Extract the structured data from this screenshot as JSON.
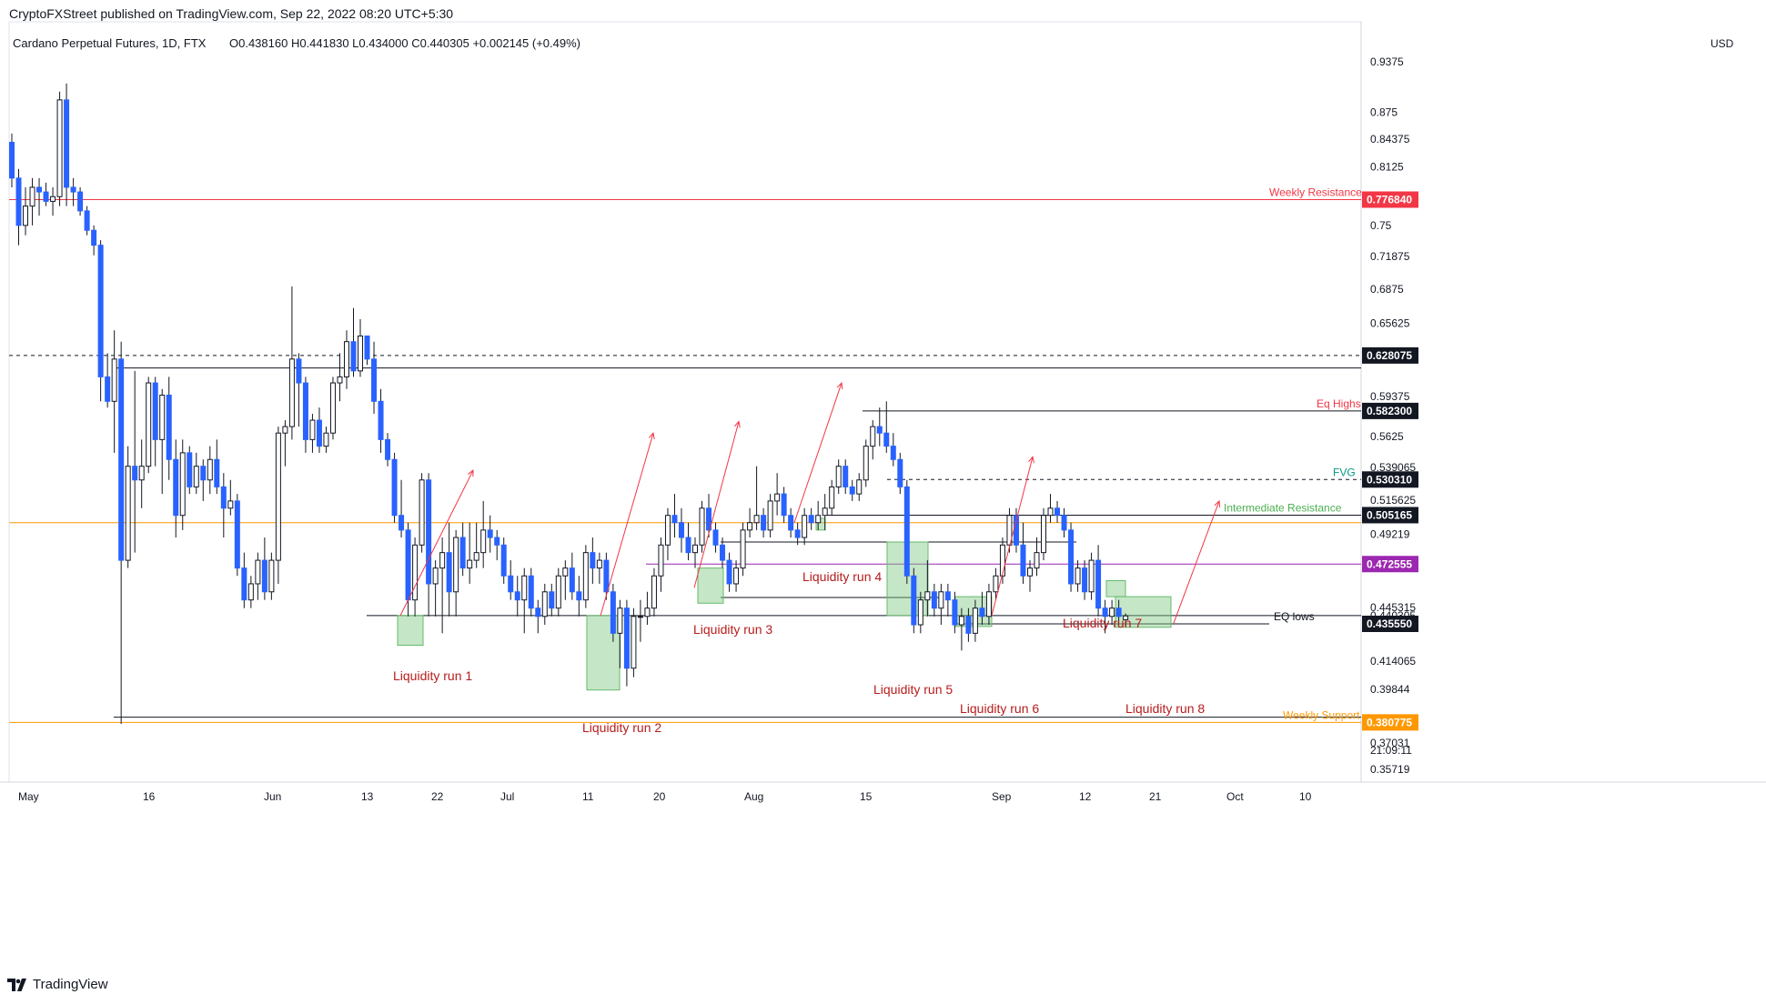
{
  "header": {
    "published": "CryptoFXStreet published on TradingView.com, Sep 22, 2022 08:20 UTC+5:30"
  },
  "footer": {
    "brand": "TradingView",
    "logo_icon": "tradingview-logo-icon"
  },
  "colors": {
    "up": "#ffffff",
    "down": "#2962ff",
    "wick": "#131722",
    "resistance": "#f23645",
    "support": "#ff9800",
    "fvg": "#089981",
    "intermediate": "#4caf50",
    "purple": "#9c27b0",
    "box": "#81c784",
    "arrow": "#f23645",
    "run_label": "#b71c1c"
  },
  "chart_data": {
    "type": "candlestick",
    "title": "Cardano Perpetual Futures, 1D, FTX",
    "ohlc_header": "O0.438160  H0.441830  L0.434000  C0.440305  +0.002145 (+0.49%)",
    "currency": "USD",
    "y_scale": "log",
    "ylim": [
      0.351,
      0.99
    ],
    "x_tick_labels": [
      "May",
      "16",
      "Jun",
      "13",
      "22",
      "Jul",
      "11",
      "20",
      "Aug",
      "15",
      "Sep",
      "12",
      "21",
      "Oct",
      "10"
    ],
    "y_tick_labels": [
      0.9375,
      0.875,
      0.84375,
      0.8125,
      0.75,
      0.71875,
      0.6875,
      0.65625,
      0.59375,
      0.5625,
      0.539065,
      0.515625,
      0.49219,
      0.445315,
      0.440305,
      0.414065,
      0.39844,
      0.37031,
      0.35719
    ],
    "countdown": "21:09:11",
    "price_tags": [
      {
        "value": "0.776840",
        "color": "#f23645"
      },
      {
        "value": "0.628075",
        "color": "#131722"
      },
      {
        "value": "0.582300",
        "color": "#131722"
      },
      {
        "value": "0.530310",
        "color": "#131722"
      },
      {
        "value": "0.505165",
        "color": "#131722"
      },
      {
        "value": "0.472555",
        "color": "#9c27b0"
      },
      {
        "value": "0.435550",
        "color": "#131722"
      },
      {
        "value": "0.380775",
        "color": "#ff9800"
      }
    ],
    "levels": [
      {
        "label": "Weekly Resistance",
        "value": 0.77684,
        "color": "#f23645"
      },
      {
        "label": "Eq Highs",
        "value": 0.5823,
        "color": "#f23645"
      },
      {
        "label": "FVG",
        "value": 0.53031,
        "color": "#089981"
      },
      {
        "label": "Intermediate Resistance",
        "value": 0.505165,
        "color": "#4caf50"
      },
      {
        "label": "EQ lows",
        "value": 0.43555,
        "color": "#131722"
      },
      {
        "label": "Weekly Support",
        "value": 0.380775,
        "color": "#ff9800"
      }
    ],
    "liquidity_runs": [
      "Liquidity run 1",
      "Liquidity run 2",
      "Liquidity run 3",
      "Liquidity run 4",
      "Liquidity run 5",
      "Liquidity run 6",
      "Liquidity run 7",
      "Liquidity run 8"
    ],
    "candles": [
      [
        0.84,
        0.85,
        0.79,
        0.8
      ],
      [
        0.8,
        0.81,
        0.73,
        0.75
      ],
      [
        0.75,
        0.79,
        0.74,
        0.77
      ],
      [
        0.77,
        0.8,
        0.75,
        0.79
      ],
      [
        0.79,
        0.8,
        0.76,
        0.785
      ],
      [
        0.785,
        0.795,
        0.77,
        0.775
      ],
      [
        0.775,
        0.79,
        0.76,
        0.78
      ],
      [
        0.78,
        0.9,
        0.77,
        0.89
      ],
      [
        0.89,
        0.91,
        0.77,
        0.79
      ],
      [
        0.79,
        0.8,
        0.77,
        0.785
      ],
      [
        0.785,
        0.79,
        0.76,
        0.765
      ],
      [
        0.765,
        0.77,
        0.74,
        0.745
      ],
      [
        0.745,
        0.75,
        0.72,
        0.73
      ],
      [
        0.73,
        0.735,
        0.59,
        0.61
      ],
      [
        0.61,
        0.63,
        0.585,
        0.59
      ],
      [
        0.59,
        0.65,
        0.55,
        0.625
      ],
      [
        0.625,
        0.64,
        0.38,
        0.475
      ],
      [
        0.475,
        0.555,
        0.47,
        0.54
      ],
      [
        0.54,
        0.615,
        0.48,
        0.53
      ],
      [
        0.53,
        0.56,
        0.51,
        0.54
      ],
      [
        0.54,
        0.61,
        0.535,
        0.605
      ],
      [
        0.605,
        0.61,
        0.54,
        0.56
      ],
      [
        0.56,
        0.6,
        0.52,
        0.595
      ],
      [
        0.595,
        0.61,
        0.53,
        0.545
      ],
      [
        0.545,
        0.56,
        0.49,
        0.505
      ],
      [
        0.505,
        0.56,
        0.495,
        0.55
      ],
      [
        0.55,
        0.555,
        0.52,
        0.525
      ],
      [
        0.525,
        0.55,
        0.52,
        0.54
      ],
      [
        0.54,
        0.545,
        0.515,
        0.53
      ],
      [
        0.53,
        0.555,
        0.52,
        0.545
      ],
      [
        0.545,
        0.56,
        0.52,
        0.525
      ],
      [
        0.525,
        0.535,
        0.49,
        0.51
      ],
      [
        0.51,
        0.53,
        0.505,
        0.515
      ],
      [
        0.515,
        0.52,
        0.465,
        0.47
      ],
      [
        0.47,
        0.48,
        0.445,
        0.45
      ],
      [
        0.45,
        0.465,
        0.445,
        0.46
      ],
      [
        0.46,
        0.48,
        0.45,
        0.475
      ],
      [
        0.475,
        0.49,
        0.45,
        0.455
      ],
      [
        0.455,
        0.48,
        0.45,
        0.475
      ],
      [
        0.475,
        0.57,
        0.46,
        0.565
      ],
      [
        0.565,
        0.575,
        0.54,
        0.57
      ],
      [
        0.57,
        0.69,
        0.56,
        0.625
      ],
      [
        0.625,
        0.63,
        0.57,
        0.605
      ],
      [
        0.605,
        0.61,
        0.55,
        0.56
      ],
      [
        0.56,
        0.58,
        0.55,
        0.575
      ],
      [
        0.575,
        0.585,
        0.55,
        0.555
      ],
      [
        0.555,
        0.57,
        0.55,
        0.565
      ],
      [
        0.565,
        0.61,
        0.56,
        0.605
      ],
      [
        0.605,
        0.63,
        0.59,
        0.61
      ],
      [
        0.61,
        0.65,
        0.6,
        0.64
      ],
      [
        0.64,
        0.67,
        0.61,
        0.615
      ],
      [
        0.615,
        0.66,
        0.61,
        0.645
      ],
      [
        0.645,
        0.645,
        0.62,
        0.625
      ],
      [
        0.625,
        0.64,
        0.58,
        0.59
      ],
      [
        0.59,
        0.6,
        0.55,
        0.56
      ],
      [
        0.56,
        0.565,
        0.54,
        0.545
      ],
      [
        0.545,
        0.55,
        0.5,
        0.505
      ],
      [
        0.505,
        0.53,
        0.49,
        0.495
      ],
      [
        0.495,
        0.5,
        0.44,
        0.45
      ],
      [
        0.45,
        0.49,
        0.44,
        0.485
      ],
      [
        0.485,
        0.535,
        0.48,
        0.53
      ],
      [
        0.53,
        0.535,
        0.44,
        0.46
      ],
      [
        0.46,
        0.475,
        0.44,
        0.47
      ],
      [
        0.47,
        0.49,
        0.43,
        0.48
      ],
      [
        0.48,
        0.5,
        0.44,
        0.455
      ],
      [
        0.455,
        0.495,
        0.44,
        0.49
      ],
      [
        0.49,
        0.5,
        0.465,
        0.47
      ],
      [
        0.47,
        0.5,
        0.46,
        0.475
      ],
      [
        0.475,
        0.5,
        0.47,
        0.48
      ],
      [
        0.48,
        0.515,
        0.47,
        0.495
      ],
      [
        0.495,
        0.505,
        0.48,
        0.49
      ],
      [
        0.49,
        0.495,
        0.475,
        0.485
      ],
      [
        0.485,
        0.49,
        0.46,
        0.465
      ],
      [
        0.465,
        0.475,
        0.45,
        0.455
      ],
      [
        0.455,
        0.465,
        0.44,
        0.45
      ],
      [
        0.45,
        0.47,
        0.43,
        0.465
      ],
      [
        0.465,
        0.47,
        0.44,
        0.445
      ],
      [
        0.445,
        0.45,
        0.43,
        0.44
      ],
      [
        0.44,
        0.46,
        0.435,
        0.455
      ],
      [
        0.455,
        0.46,
        0.44,
        0.445
      ],
      [
        0.445,
        0.47,
        0.44,
        0.465
      ],
      [
        0.465,
        0.475,
        0.45,
        0.47
      ],
      [
        0.47,
        0.48,
        0.45,
        0.455
      ],
      [
        0.455,
        0.465,
        0.44,
        0.45
      ],
      [
        0.45,
        0.485,
        0.445,
        0.48
      ],
      [
        0.48,
        0.49,
        0.46,
        0.47
      ],
      [
        0.47,
        0.48,
        0.46,
        0.475
      ],
      [
        0.475,
        0.48,
        0.45,
        0.455
      ],
      [
        0.455,
        0.46,
        0.425,
        0.43
      ],
      [
        0.43,
        0.45,
        0.41,
        0.445
      ],
      [
        0.445,
        0.45,
        0.4,
        0.41
      ],
      [
        0.41,
        0.445,
        0.405,
        0.44
      ],
      [
        0.44,
        0.45,
        0.425,
        0.44
      ],
      [
        0.44,
        0.455,
        0.435,
        0.445
      ],
      [
        0.445,
        0.47,
        0.44,
        0.465
      ],
      [
        0.465,
        0.49,
        0.455,
        0.485
      ],
      [
        0.485,
        0.51,
        0.475,
        0.505
      ],
      [
        0.505,
        0.52,
        0.49,
        0.5
      ],
      [
        0.5,
        0.51,
        0.48,
        0.49
      ],
      [
        0.49,
        0.5,
        0.475,
        0.48
      ],
      [
        0.48,
        0.49,
        0.47,
        0.485
      ],
      [
        0.485,
        0.515,
        0.48,
        0.51
      ],
      [
        0.51,
        0.52,
        0.49,
        0.495
      ],
      [
        0.495,
        0.5,
        0.48,
        0.485
      ],
      [
        0.485,
        0.49,
        0.47,
        0.475
      ],
      [
        0.475,
        0.48,
        0.455,
        0.46
      ],
      [
        0.46,
        0.475,
        0.455,
        0.47
      ],
      [
        0.47,
        0.5,
        0.465,
        0.495
      ],
      [
        0.495,
        0.51,
        0.49,
        0.5
      ],
      [
        0.5,
        0.54,
        0.495,
        0.505
      ],
      [
        0.505,
        0.51,
        0.49,
        0.495
      ],
      [
        0.495,
        0.52,
        0.49,
        0.515
      ],
      [
        0.515,
        0.535,
        0.505,
        0.52
      ],
      [
        0.52,
        0.525,
        0.5,
        0.505
      ],
      [
        0.505,
        0.51,
        0.49,
        0.495
      ],
      [
        0.495,
        0.5,
        0.485,
        0.49
      ],
      [
        0.49,
        0.51,
        0.485,
        0.505
      ],
      [
        0.505,
        0.51,
        0.495,
        0.5
      ],
      [
        0.5,
        0.515,
        0.495,
        0.505
      ],
      [
        0.505,
        0.52,
        0.495,
        0.51
      ],
      [
        0.51,
        0.53,
        0.505,
        0.525
      ],
      [
        0.525,
        0.545,
        0.52,
        0.54
      ],
      [
        0.54,
        0.545,
        0.52,
        0.525
      ],
      [
        0.525,
        0.53,
        0.515,
        0.52
      ],
      [
        0.52,
        0.535,
        0.515,
        0.53
      ],
      [
        0.53,
        0.56,
        0.525,
        0.555
      ],
      [
        0.555,
        0.575,
        0.545,
        0.57
      ],
      [
        0.57,
        0.585,
        0.555,
        0.565
      ],
      [
        0.565,
        0.59,
        0.55,
        0.555
      ],
      [
        0.555,
        0.565,
        0.54,
        0.545
      ],
      [
        0.545,
        0.55,
        0.52,
        0.525
      ],
      [
        0.525,
        0.53,
        0.46,
        0.465
      ],
      [
        0.465,
        0.47,
        0.43,
        0.435
      ],
      [
        0.435,
        0.455,
        0.43,
        0.45
      ],
      [
        0.45,
        0.475,
        0.44,
        0.455
      ],
      [
        0.455,
        0.46,
        0.44,
        0.445
      ],
      [
        0.445,
        0.46,
        0.435,
        0.455
      ],
      [
        0.455,
        0.46,
        0.44,
        0.45
      ],
      [
        0.45,
        0.455,
        0.43,
        0.435
      ],
      [
        0.435,
        0.445,
        0.42,
        0.44
      ],
      [
        0.44,
        0.445,
        0.425,
        0.43
      ],
      [
        0.43,
        0.45,
        0.425,
        0.445
      ],
      [
        0.445,
        0.455,
        0.435,
        0.44
      ],
      [
        0.44,
        0.46,
        0.435,
        0.455
      ],
      [
        0.455,
        0.47,
        0.45,
        0.465
      ],
      [
        0.465,
        0.49,
        0.46,
        0.485
      ],
      [
        0.485,
        0.51,
        0.48,
        0.505
      ],
      [
        0.505,
        0.51,
        0.48,
        0.485
      ],
      [
        0.485,
        0.5,
        0.46,
        0.465
      ],
      [
        0.465,
        0.475,
        0.455,
        0.47
      ],
      [
        0.47,
        0.49,
        0.465,
        0.48
      ],
      [
        0.48,
        0.51,
        0.475,
        0.505
      ],
      [
        0.505,
        0.52,
        0.5,
        0.51
      ],
      [
        0.51,
        0.515,
        0.5,
        0.505
      ],
      [
        0.505,
        0.51,
        0.49,
        0.495
      ],
      [
        0.495,
        0.5,
        0.455,
        0.46
      ],
      [
        0.46,
        0.475,
        0.455,
        0.47
      ],
      [
        0.47,
        0.475,
        0.45,
        0.455
      ],
      [
        0.455,
        0.48,
        0.45,
        0.475
      ],
      [
        0.475,
        0.485,
        0.44,
        0.445
      ],
      [
        0.445,
        0.45,
        0.43,
        0.44
      ],
      [
        0.44,
        0.45,
        0.435,
        0.445
      ],
      [
        0.445,
        0.45,
        0.435,
        0.44
      ],
      [
        0.438,
        0.4418,
        0.434,
        0.4403
      ]
    ]
  }
}
